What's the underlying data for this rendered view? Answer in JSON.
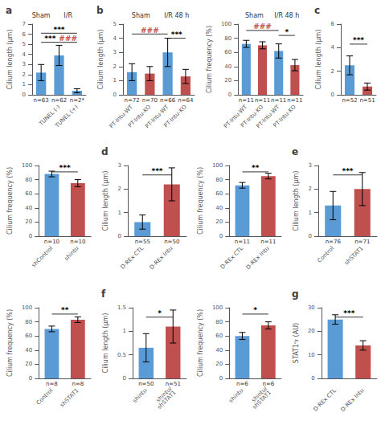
{
  "chart_data": [
    {
      "type": "bar",
      "title": "a",
      "categories": [
        null,
        "TUNEL (-)",
        "TUNEL (+)"
      ],
      "values": [
        2.2,
        3.9,
        0.4
      ],
      "errors": [
        0.8,
        1.0,
        0.2
      ],
      "n_labels": [
        "n=63",
        "n=62",
        "n=2*"
      ],
      "color": "#5b9bd5",
      "ylabel": "Cilium length (μm)",
      "ylim": [
        0,
        7
      ],
      "yticks": [
        0,
        1,
        2,
        3,
        4,
        5,
        6,
        7
      ],
      "grid": false,
      "groups": [
        {
          "label": "Sham",
          "from": 0,
          "to": 0
        },
        {
          "label": "I/R",
          "from": 1,
          "to": 2
        }
      ],
      "significance": [
        {
          "from": 0,
          "to": 1,
          "y": 5.2,
          "text": "***"
        },
        {
          "from": 0,
          "to": 2,
          "y": 6.1,
          "text": "***"
        },
        {
          "from": 1,
          "to": 2,
          "y": 5.2,
          "text": "###",
          "color": "#c0504d"
        }
      ]
    },
    {
      "type": "bar",
      "title": "b",
      "categories": [
        "PT-Intu-WT",
        "PT-Intu-KO",
        "PT-Intu-WT",
        "PT-Intu-KO"
      ],
      "values": [
        1.6,
        1.5,
        3.0,
        1.3
      ],
      "errors": [
        0.6,
        0.5,
        1.0,
        0.5
      ],
      "n_labels": [
        "n=72",
        "n=70",
        "n=66",
        "n=64"
      ],
      "colors": [
        "#5b9bd5",
        "#c0504d",
        "#5b9bd5",
        "#c0504d"
      ],
      "ylabel": "Cilium length (μm)",
      "ylim": [
        0,
        5
      ],
      "yticks": [
        0,
        1,
        2,
        3,
        4,
        5
      ],
      "grid": false,
      "groups": [
        {
          "label": "Sham",
          "from": 0,
          "to": 1
        },
        {
          "label": "I/R 48 h",
          "from": 2,
          "to": 3
        }
      ],
      "significance": [
        {
          "from": 0,
          "to": 2,
          "y": 4.3,
          "text": "###",
          "color": "#c0504d"
        },
        {
          "from": 2,
          "to": 3,
          "y": 4.0,
          "text": "***"
        }
      ]
    },
    {
      "type": "bar",
      "categories": [
        "PT-Intu-WT",
        "PT-Intu-KO",
        "PT-Intu-WT",
        "PT-Intu-KO"
      ],
      "values": [
        72,
        70,
        62,
        42
      ],
      "errors": [
        5,
        5,
        10,
        8
      ],
      "n_labels": [
        "n=11",
        "n=11",
        "n=11",
        "n=11"
      ],
      "colors": [
        "#5b9bd5",
        "#c0504d",
        "#5b9bd5",
        "#c0504d"
      ],
      "ylabel": "Cilium frequency (%)",
      "ylim": [
        0,
        100
      ],
      "yticks": [
        0,
        20,
        40,
        60,
        80,
        100
      ],
      "grid": false,
      "groups": [
        {
          "label": "Sham",
          "from": 0,
          "to": 1
        },
        {
          "label": "I/R 48 h",
          "from": 2,
          "to": 3
        }
      ],
      "significance": [
        {
          "from": 0,
          "to": 2,
          "y": 91,
          "text": "###",
          "color": "#c0504d"
        },
        {
          "from": 2,
          "to": 3,
          "y": 84,
          "text": "*"
        }
      ]
    },
    {
      "type": "bar",
      "title": "c",
      "categories": [
        null,
        null
      ],
      "values": [
        2.5,
        0.7
      ],
      "errors": [
        0.8,
        0.3
      ],
      "n_labels": [
        "n=52",
        "n=51"
      ],
      "colors": [
        "#5b9bd5",
        "#c0504d"
      ],
      "ylabel": "Cilium length (μm)",
      "ylim": [
        0,
        6
      ],
      "yticks": [
        0,
        2,
        4,
        6
      ],
      "grid": false,
      "significance": [
        {
          "from": 0,
          "to": 1,
          "y": 4.3,
          "text": "***"
        }
      ]
    },
    {
      "type": "bar",
      "categories": [
        "shControl",
        "shintu"
      ],
      "values": [
        88,
        75
      ],
      "errors": [
        4,
        5
      ],
      "n_labels": [
        "n=10",
        "n=10"
      ],
      "colors": [
        "#5b9bd5",
        "#c0504d"
      ],
      "ylabel": "Cilium frequency (%)",
      "ylim": [
        0,
        100
      ],
      "yticks": [
        0,
        20,
        40,
        60,
        80,
        100
      ],
      "grid": false,
      "significance": [
        {
          "from": 0,
          "to": 1,
          "y": 91,
          "text": "***"
        }
      ]
    },
    {
      "type": "bar",
      "title": "d",
      "categories": [
        "D-REx CTL",
        "D-REx Intu"
      ],
      "values": [
        0.6,
        2.2
      ],
      "errors": [
        0.3,
        0.7
      ],
      "n_labels": [
        "n=55",
        "n=50"
      ],
      "colors": [
        "#5b9bd5",
        "#c0504d"
      ],
      "ylabel": "Cilium length (μm)",
      "ylim": [
        0,
        3
      ],
      "yticks": [
        0,
        1,
        2,
        3
      ],
      "grid": false,
      "significance": [
        {
          "from": 0,
          "to": 1,
          "y": 2.6,
          "text": "***"
        }
      ]
    },
    {
      "type": "bar",
      "categories": [
        "D-REx CTL",
        "D-REx Intu"
      ],
      "values": [
        72,
        85
      ],
      "errors": [
        4,
        4
      ],
      "n_labels": [
        "n=11",
        "n=11"
      ],
      "colors": [
        "#5b9bd5",
        "#c0504d"
      ],
      "ylabel": "Cilium frequency (%)",
      "ylim": [
        0,
        100
      ],
      "yticks": [
        0,
        20,
        40,
        60,
        80,
        100
      ],
      "grid": false,
      "significance": [
        {
          "from": 0,
          "to": 1,
          "y": 91,
          "text": "**"
        }
      ]
    },
    {
      "type": "bar",
      "title": "e",
      "categories": [
        "Control",
        "shSTAT1"
      ],
      "values": [
        1.3,
        2.0
      ],
      "errors": [
        0.6,
        0.7
      ],
      "n_labels": [
        "n=76",
        "n=71"
      ],
      "colors": [
        "#5b9bd5",
        "#c0504d"
      ],
      "ylabel": "Cilium length (μm)",
      "ylim": [
        0,
        3
      ],
      "yticks": [
        0,
        1,
        2,
        3
      ],
      "grid": false,
      "significance": [
        {
          "from": 0,
          "to": 1,
          "y": 2.6,
          "text": "***"
        }
      ]
    },
    {
      "type": "bar",
      "categories": [
        "Control",
        "shSTAT1"
      ],
      "values": [
        70,
        83
      ],
      "errors": [
        4,
        4
      ],
      "n_labels": [
        "n=8",
        "n=8"
      ],
      "colors": [
        "#5b9bd5",
        "#c0504d"
      ],
      "ylabel": "Cilium frequency (%)",
      "ylim": [
        0,
        100
      ],
      "yticks": [
        0,
        20,
        40,
        60,
        80,
        100
      ],
      "grid": false,
      "significance": [
        {
          "from": 0,
          "to": 1,
          "y": 91,
          "text": "**"
        }
      ]
    },
    {
      "type": "bar",
      "title": "f",
      "categories": [
        "shintu",
        "shintu/\nshSTAT1"
      ],
      "values": [
        0.65,
        1.1
      ],
      "errors": [
        0.3,
        0.35
      ],
      "n_labels": [
        "n=50",
        "n=51"
      ],
      "colors": [
        "#5b9bd5",
        "#c0504d"
      ],
      "ylabel": "Cilium length (μm)",
      "ylim": [
        0,
        1.5
      ],
      "yticks": [
        0,
        0.5,
        1,
        1.5
      ],
      "grid": false,
      "significance": [
        {
          "from": 0,
          "to": 1,
          "y": 1.3,
          "text": "*"
        }
      ]
    },
    {
      "type": "bar",
      "categories": [
        "shintu",
        "shintu/\nshSTAT1"
      ],
      "values": [
        60,
        75
      ],
      "errors": [
        5,
        5
      ],
      "n_labels": [
        "n=6",
        "n=6"
      ],
      "colors": [
        "#5b9bd5",
        "#c0504d"
      ],
      "ylabel": "Cilium frequency (%)",
      "ylim": [
        0,
        100
      ],
      "yticks": [
        0,
        20,
        40,
        60,
        80,
        100
      ],
      "grid": false,
      "significance": [
        {
          "from": 0,
          "to": 1,
          "y": 91,
          "text": "*"
        }
      ]
    },
    {
      "type": "bar",
      "title": "g",
      "categories": [
        "D-REx CTL",
        "D-REx Intu"
      ],
      "values": [
        25,
        14
      ],
      "errors": [
        2,
        2
      ],
      "colors": [
        "#5b9bd5",
        "#c0504d"
      ],
      "ylabel": "STAT1ᵒᵲ (AU)",
      "ylim": [
        0,
        30
      ],
      "yticks": [
        0,
        10,
        20,
        30
      ],
      "grid": false,
      "significance": [
        {
          "from": 0,
          "to": 1,
          "y": 26,
          "text": "***"
        }
      ]
    }
  ]
}
